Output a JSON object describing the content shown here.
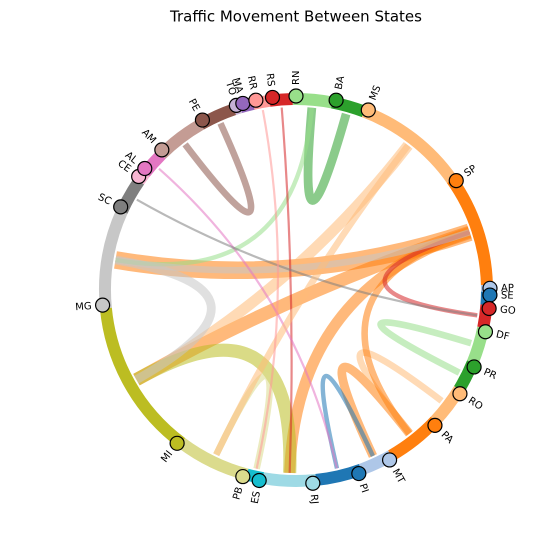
{
  "chart_data": {
    "type": "chord",
    "title": "Traffic Movement Between States",
    "categories": [
      "RN",
      "BA",
      "MS",
      "SP",
      "AP",
      "SE",
      "GO",
      "DF",
      "PR",
      "RO",
      "PA",
      "MT",
      "PI",
      "RJ",
      "ES",
      "PB",
      "MI",
      "MG",
      "SC",
      "CE",
      "AL",
      "AM",
      "PE",
      "TO",
      "MA",
      "RR",
      "RS"
    ],
    "colors": [
      "#98df8a",
      "#2ca02c",
      "#ffbb78",
      "#ff7f0e",
      "#aec7e8",
      "#1f77b4",
      "#d62728",
      "#98df8a",
      "#2ca02c",
      "#ffbb78",
      "#ff7f0e",
      "#aec7e8",
      "#1f77b4",
      "#9edae5",
      "#17becf",
      "#dbdb8d",
      "#bcbd22",
      "#c7c7c7",
      "#7f7f7f",
      "#f7b6d2",
      "#e377c2",
      "#c49c94",
      "#8c564b",
      "#c5b0d5",
      "#9467bd",
      "#ff9896",
      "#d62728"
    ],
    "values": [
      12,
      10,
      34,
      34,
      2,
      4,
      7,
      11,
      9,
      12,
      17,
      10,
      14,
      16,
      5,
      22,
      48,
      30,
      10.5,
      3,
      7.5,
      15,
      11,
      2,
      4,
      5,
      7
    ],
    "links": [
      {
        "source": "SP",
        "target": "MG",
        "value": 8
      },
      {
        "source": "SP",
        "target": "MI",
        "value": 6
      },
      {
        "source": "SP",
        "target": "RJ",
        "value": 5
      },
      {
        "source": "MS",
        "target": "MI",
        "value": 5
      },
      {
        "source": "MI",
        "target": "RJ",
        "value": 6
      },
      {
        "source": "PA",
        "target": "MT",
        "value": 4
      },
      {
        "source": "RO",
        "target": "PA",
        "value": 3
      },
      {
        "source": "DF",
        "target": "PR",
        "value": 3
      },
      {
        "source": "BA",
        "target": "RN",
        "value": 4
      },
      {
        "source": "MG",
        "target": "MI",
        "value": 4
      },
      {
        "source": "PE",
        "target": "AM",
        "value": 3
      },
      {
        "source": "SP",
        "target": "PA",
        "value": 3
      },
      {
        "source": "RN",
        "target": "MG",
        "value": 2
      },
      {
        "source": "GO",
        "target": "SP",
        "value": 2
      },
      {
        "source": "PB",
        "target": "ES",
        "value": 3
      },
      {
        "source": "PI",
        "target": "MT",
        "value": 2
      },
      {
        "source": "MG",
        "target": "SP",
        "value": 3
      },
      {
        "source": "RS",
        "target": "RJ",
        "value": 1
      },
      {
        "source": "AL",
        "target": "PI",
        "value": 1
      },
      {
        "source": "SC",
        "target": "GO",
        "value": 1
      },
      {
        "source": "MS",
        "target": "PB",
        "value": 3
      },
      {
        "source": "RR",
        "target": "ES",
        "value": 1
      }
    ]
  }
}
